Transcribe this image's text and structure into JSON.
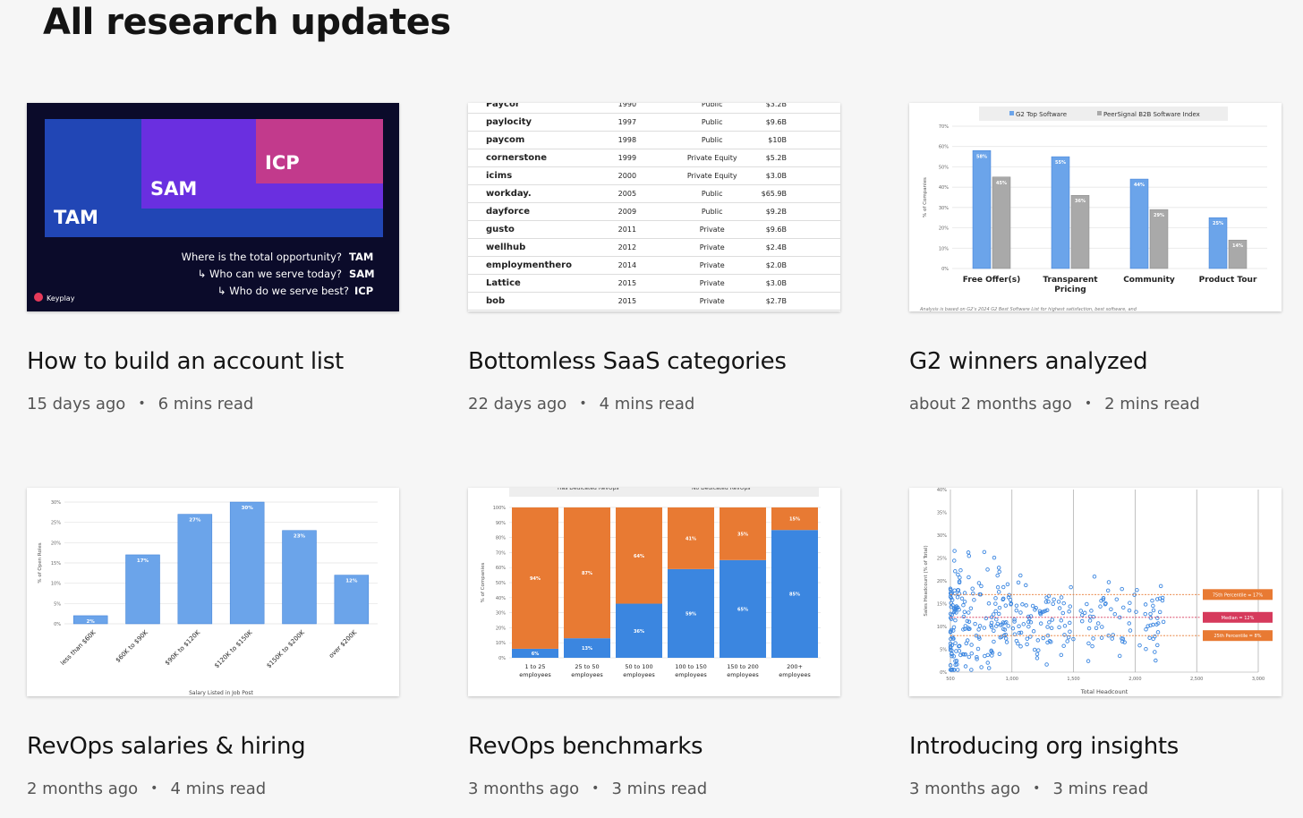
{
  "page": {
    "title": "All research updates"
  },
  "cards": [
    {
      "title": "How to build an account list",
      "age": "15 days ago",
      "read": "6 mins read"
    },
    {
      "title": "Bottomless SaaS categories",
      "age": "22 days ago",
      "read": "4 mins read"
    },
    {
      "title": "G2 winners analyzed",
      "age": "about 2 months ago",
      "read": "2 mins read"
    },
    {
      "title": "RevOps salaries & hiring",
      "age": "2 months ago",
      "read": "4 mins read"
    },
    {
      "title": "RevOps benchmarks",
      "age": "3 months ago",
      "read": "3 mins read"
    },
    {
      "title": "Introducing org insights",
      "age": "3 months ago",
      "read": "3 mins read"
    }
  ],
  "thumb1": {
    "tam": "TAM",
    "sam": "SAM",
    "icp": "ICP",
    "q1": "Where is the total opportunity?",
    "q1b": "TAM",
    "q2": "↳ Who can we serve today?",
    "q2b": "SAM",
    "q3": "↳ Who do we serve best?",
    "q3b": "ICP",
    "logo": "Keyplay",
    "colors": {
      "bg": "#0b0b2a",
      "tam": "#2146b5",
      "sam": "#6a2fe0",
      "icp": "#c23a8c"
    }
  },
  "thumb2": {
    "rows": [
      [
        "Paycor",
        "1990",
        "Public",
        "$3.2B"
      ],
      [
        "paylocity",
        "1997",
        "Public",
        "$9.6B"
      ],
      [
        "paycom",
        "1998",
        "Public",
        "$10B"
      ],
      [
        "cornerstone",
        "1999",
        "Private Equity",
        "$5.2B"
      ],
      [
        "icims",
        "2000",
        "Private Equity",
        "$3.0B"
      ],
      [
        "workday.",
        "2005",
        "Public",
        "$65.9B"
      ],
      [
        "dayforce",
        "2009",
        "Public",
        "$9.2B"
      ],
      [
        "gusto",
        "2011",
        "Private",
        "$9.6B"
      ],
      [
        "wellhub",
        "2012",
        "Private",
        "$2.4B"
      ],
      [
        "employmenthero",
        "2014",
        "Private",
        "$2.0B"
      ],
      [
        "Lattice",
        "2015",
        "Private",
        "$3.0B"
      ],
      [
        "bob",
        "2015",
        "Private",
        "$2.7B"
      ]
    ]
  },
  "chart_data": [
    {
      "type": "bar",
      "legend": [
        "G2 Top Software",
        "PeerSignal B2B Software Index"
      ],
      "categories": [
        "Free Offer(s)",
        "Transparent Pricing",
        "Community",
        "Product Tour"
      ],
      "series": [
        {
          "name": "G2 Top Software",
          "values": [
            58,
            55,
            44,
            25
          ],
          "labels": [
            "58%",
            "55%",
            "44%",
            "25%"
          ],
          "color": "#6ba4ea"
        },
        {
          "name": "PeerSignal B2B Software Index",
          "values": [
            45,
            36,
            29,
            14
          ],
          "labels": [
            "45%",
            "36%",
            "29%",
            "14%"
          ],
          "color": "#a9a9a9"
        }
      ],
      "ylabel": "% of Companies",
      "yticks": [
        "0%",
        "10%",
        "20%",
        "30%",
        "40%",
        "50%",
        "60%",
        "70%"
      ],
      "ylim": [
        0,
        70
      ],
      "footnote": "Analysis is based on G2's 2024 G2 Best Software List for highest satisfaction, best software, and"
    },
    {
      "type": "bar",
      "categories": [
        "less than $60K",
        "$60K to $90K",
        "$90K to $120K",
        "$120K to $150K",
        "$150K to $200K",
        "over $200K"
      ],
      "values": [
        2,
        17,
        27,
        30,
        23,
        12
      ],
      "labels": [
        "2%",
        "17%",
        "27%",
        "30%",
        "23%",
        "12%"
      ],
      "color": "#6ba4ea",
      "ylabel": "% of Open Roles",
      "xlabel": "Salary Listed in Job Post",
      "yticks": [
        "0%",
        "5%",
        "10%",
        "15%",
        "20%",
        "25%",
        "30%"
      ],
      "ylim": [
        0,
        30
      ]
    },
    {
      "type": "bar",
      "stacked": true,
      "legend": [
        "Has Dedicated RevOps",
        "No Dedicated RevOps"
      ],
      "categories": [
        "1 to 25 employees",
        "25 to 50 employees",
        "50 to 100 employees",
        "100 to 150 employees",
        "150 to 200 employees",
        "200+ employees"
      ],
      "series": [
        {
          "name": "Has Dedicated RevOps",
          "values": [
            6,
            13,
            36,
            59,
            65,
            85
          ],
          "labels": [
            "6%",
            "13%",
            "36%",
            "59%",
            "65%",
            "85%"
          ],
          "color": "#3b86e0"
        },
        {
          "name": "No Dedicated RevOps",
          "values": [
            94,
            87,
            64,
            41,
            35,
            15
          ],
          "labels": [
            "94%",
            "87%",
            "64%",
            "41%",
            "35%",
            "15%"
          ],
          "color": "#e87a33"
        }
      ],
      "ylabel": "% of Companies",
      "yticks": [
        "0%",
        "10%",
        "20%",
        "30%",
        "40%",
        "50%",
        "60%",
        "70%",
        "80%",
        "90%",
        "100%"
      ],
      "ylim": [
        0,
        100
      ]
    },
    {
      "type": "scatter",
      "xlabel": "Total Headcount",
      "ylabel": "Sales Headcount (% of Total)",
      "xticks": [
        "500",
        "1,000",
        "1,500",
        "2,000",
        "2,500",
        "3,000"
      ],
      "yticks": [
        "0%",
        "5%",
        "10%",
        "15%",
        "20%",
        "25%",
        "30%",
        "35%",
        "40%"
      ],
      "xlim": [
        500,
        3000
      ],
      "ylim": [
        0,
        40
      ],
      "reference_lines": [
        {
          "label": "75th Percentile = 17%",
          "y": 17,
          "color": "#e87a33"
        },
        {
          "label": "Median = 12%",
          "y": 12,
          "color": "#d63a5c"
        },
        {
          "label": "25th Percentile = 8%",
          "y": 8,
          "color": "#e87a33"
        }
      ],
      "point_color": "#3b86e0"
    }
  ]
}
